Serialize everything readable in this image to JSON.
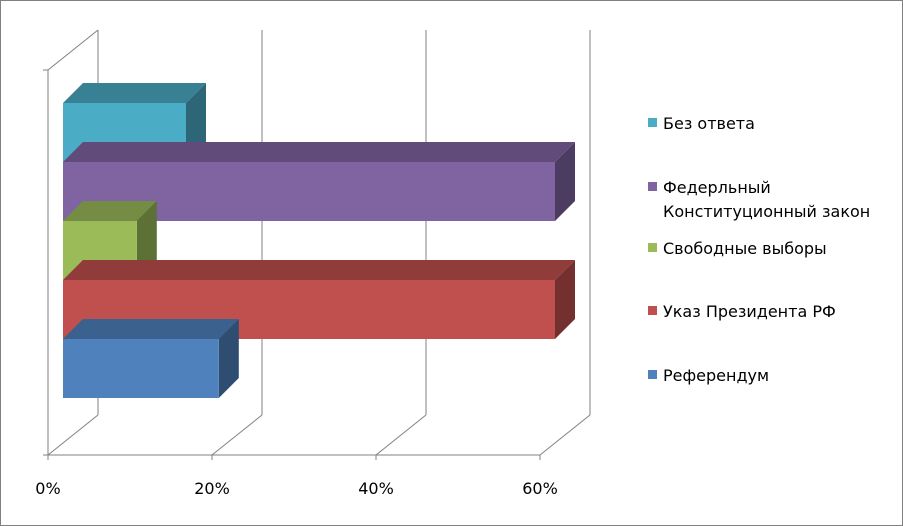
{
  "chart_data": {
    "type": "bar",
    "orientation": "horizontal",
    "three_d": true,
    "categories": [
      "Референдум",
      "Указ Президента РФ",
      "Свободные выборы",
      "Федерльный Конституционный закон",
      "Без ответа"
    ],
    "values": [
      19,
      60,
      9,
      60,
      15
    ],
    "colors": [
      "#4F81BD",
      "#C0504D",
      "#9BBB59",
      "#8064A2",
      "#4BACC6"
    ],
    "xlim": [
      0,
      60
    ],
    "xticks": [
      "0%",
      "20%",
      "40%",
      "60%"
    ],
    "xtick_values": [
      0,
      20,
      40,
      60
    ],
    "grid": true,
    "legend_position": "right",
    "legend": [
      "Без ответа",
      "Федерльный Конституционный закон",
      "Свободные выборы",
      "Указ Президента РФ",
      "Референдум"
    ]
  }
}
